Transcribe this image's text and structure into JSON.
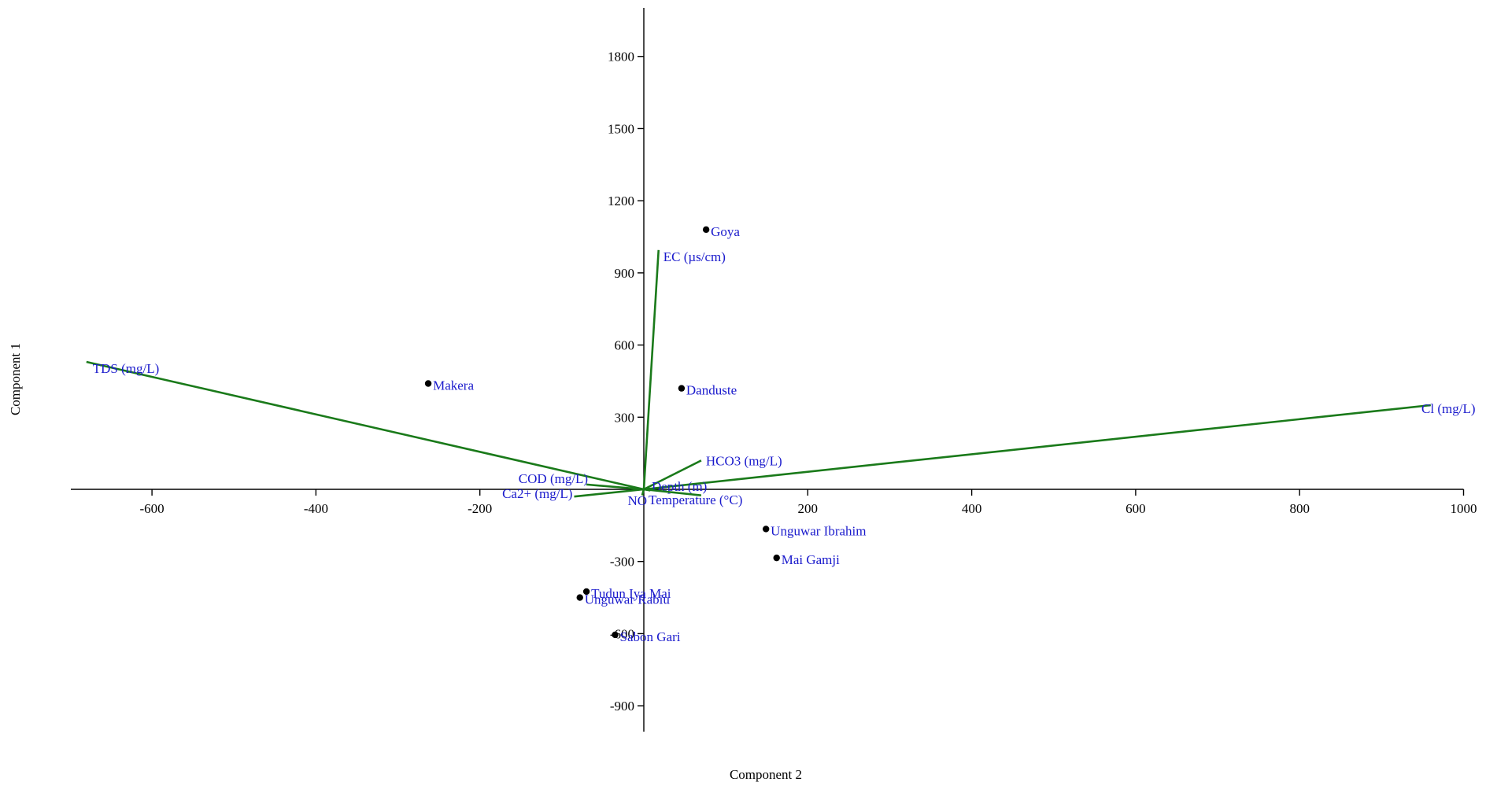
{
  "chart_data": {
    "type": "scatter",
    "title": "",
    "xlabel": "Component 2",
    "ylabel": "Component 1",
    "xlim": [
      -700,
      1000
    ],
    "ylim": [
      -1000,
      2000
    ],
    "x_ticks": [
      -600,
      -400,
      -200,
      200,
      400,
      600,
      800,
      1000
    ],
    "y_ticks": [
      -900,
      -600,
      -300,
      300,
      600,
      900,
      1200,
      1500,
      1800
    ],
    "grid": false,
    "legend": "none",
    "colors": {
      "vector": "#1a7a1a",
      "label": "#1a1acc",
      "point": "#000000"
    },
    "points": [
      {
        "label": "Goya",
        "x": 76,
        "y": 1080
      },
      {
        "label": "Makera",
        "x": -263,
        "y": 440
      },
      {
        "label": "Danduste",
        "x": 46,
        "y": 420
      },
      {
        "label": "Unguwar Ibrahim",
        "x": 149,
        "y": -165
      },
      {
        "label": "Mai Gamji",
        "x": 162,
        "y": -285
      },
      {
        "label": "Tudun Iya Mai",
        "x": -70,
        "y": -425
      },
      {
        "label": "Unguwar Rabiu",
        "x": -78,
        "y": -450
      },
      {
        "label": "Sabon Gari",
        "x": -35,
        "y": -605
      }
    ],
    "vectors": [
      {
        "label": "EC   (µs/cm)",
        "x": 18,
        "y": 995
      },
      {
        "label": "TDS (mg/L)",
        "x": -680,
        "y": 530
      },
      {
        "label": "Cl (mg/L)",
        "x": 960,
        "y": 350
      },
      {
        "label": "HCO3 (mg/L)",
        "x": 70,
        "y": 120
      },
      {
        "label": "COD (mg/L)",
        "x": -70,
        "y": 20
      },
      {
        "label": "Ca2+ (mg/L)",
        "x": -85,
        "y": -30
      },
      {
        "label": "Depth (m)",
        "x": 8,
        "y": -5
      },
      {
        "label": "NO",
        "x": -2,
        "y": -25
      },
      {
        "label": "Temperature (°C)",
        "x": 70,
        "y": -25
      }
    ]
  }
}
